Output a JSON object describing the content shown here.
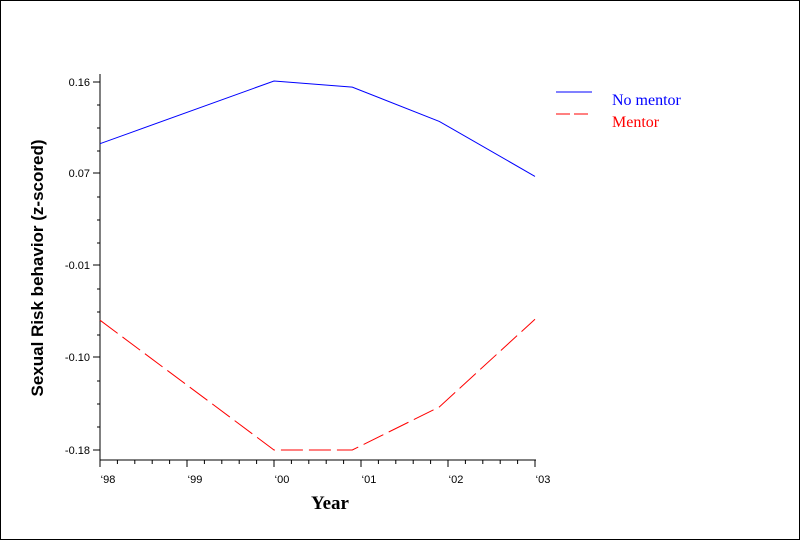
{
  "chart_data": {
    "type": "line",
    "xlabel": "Year",
    "ylabel": "Sexual Risk behavior (z-scored)",
    "categories": [
      "‘98",
      "‘99",
      "‘00",
      "‘01",
      "‘02",
      "‘03"
    ],
    "y_ticks": [
      "0.16",
      "0.07",
      "-0.01",
      "-0.10",
      "-0.18"
    ],
    "y_tick_values": [
      0.16,
      0.07,
      -0.01,
      -0.1,
      -0.18
    ],
    "ylim": [
      -0.18,
      0.16
    ],
    "xlim": [
      1998,
      2003
    ],
    "grid": false,
    "legend_position": "top-right",
    "series": [
      {
        "name": "No mentor",
        "color": "#0000ff",
        "dash": "solid",
        "points": [
          [
            1998,
            0.099
          ],
          [
            2000,
            0.161
          ],
          [
            2000.9,
            0.155
          ],
          [
            2001.9,
            0.121
          ],
          [
            2003,
            0.067
          ]
        ]
      },
      {
        "name": "Mentor",
        "color": "#ff0000",
        "dash": "dashed",
        "points": [
          [
            1998,
            -0.064
          ],
          [
            2000,
            -0.18
          ],
          [
            2000.9,
            -0.18
          ],
          [
            2001.9,
            -0.143
          ],
          [
            2003,
            -0.063
          ]
        ]
      }
    ]
  }
}
